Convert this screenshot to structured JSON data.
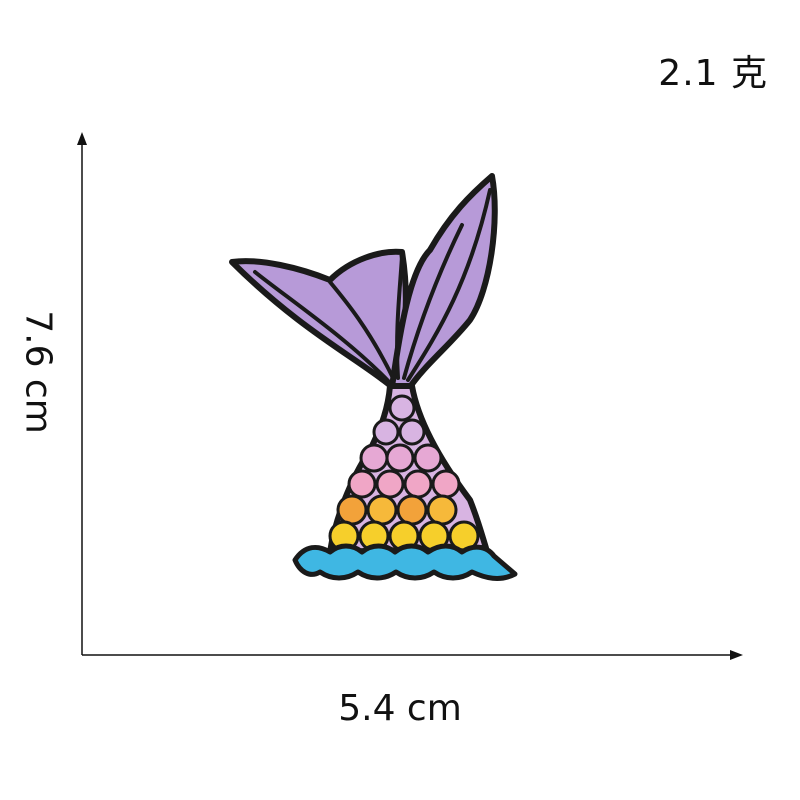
{
  "weight_label": "2.1 克",
  "dimensions": {
    "width_label": "5.4 cm",
    "height_label": "7.6 cm"
  },
  "product": {
    "icon": "mermaid-tail-patch-icon",
    "colors": {
      "outline": "#1a1a1a",
      "fin_purple": "#b79ad8",
      "scale_pink": "#f0a6c6",
      "scale_lavender": "#d8b4e2",
      "scale_orange": "#f2a23a",
      "scale_yellow": "#f6cf2b",
      "wave_blue": "#3fb7e3"
    }
  }
}
